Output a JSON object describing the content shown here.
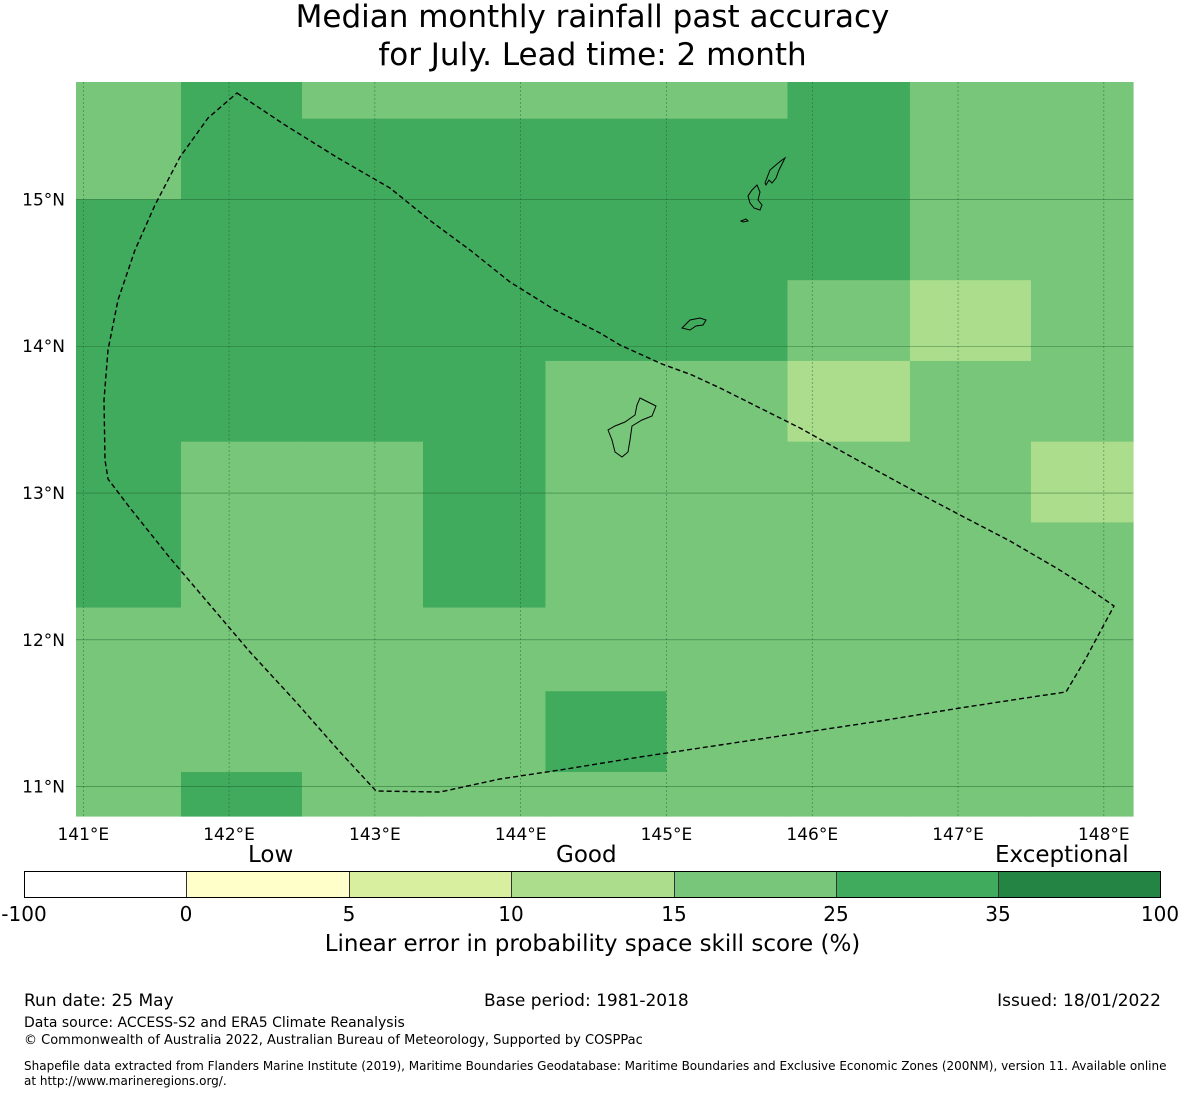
{
  "title": {
    "line1": "Median monthly rainfall past accuracy",
    "line2": "for July. Lead time: 2 month"
  },
  "map": {
    "lon_ticks": [
      "141°E",
      "142°E",
      "143°E",
      "144°E",
      "145°E",
      "146°E",
      "147°E",
      "148°E"
    ],
    "lat_ticks": [
      "15°N",
      "14°N",
      "13°N",
      "12°N",
      "11°N"
    ],
    "lon_range": [
      140.95,
      148.2
    ],
    "lat_range": [
      10.8,
      15.8
    ],
    "palette": {
      "bin_0_5": "#ffffc9",
      "bin_5_10": "#d8efa0",
      "bin_10_15": "#acdd8c",
      "bin_15_25": "#78c679",
      "bin_25_35": "#41ab5d",
      "bin_35_100": "#238443"
    },
    "grid_columns_lon_edges": [
      140.95,
      141.67,
      142.5,
      143.33,
      144.17,
      145.0,
      145.83,
      146.67,
      147.5,
      148.2
    ],
    "grid_rows_lat_edges": [
      15.8,
      15.55,
      15.0,
      14.45,
      13.9,
      13.35,
      12.8,
      12.22,
      11.65,
      11.1,
      10.8
    ],
    "cells": [
      [
        "bin_15_25",
        "bin_25_35",
        "bin_15_25",
        "bin_15_25",
        "bin_15_25",
        "bin_15_25",
        "bin_25_35",
        "bin_15_25",
        "bin_15_25"
      ],
      [
        "bin_15_25",
        "bin_25_35",
        "bin_25_35",
        "bin_25_35",
        "bin_25_35",
        "bin_25_35",
        "bin_25_35",
        "bin_15_25",
        "bin_15_25"
      ],
      [
        "bin_25_35",
        "bin_25_35",
        "bin_25_35",
        "bin_25_35",
        "bin_25_35",
        "bin_25_35",
        "bin_25_35",
        "bin_15_25",
        "bin_15_25"
      ],
      [
        "bin_25_35",
        "bin_25_35",
        "bin_25_35",
        "bin_25_35",
        "bin_25_35",
        "bin_25_35",
        "bin_15_25",
        "bin_10_15",
        "bin_15_25"
      ],
      [
        "bin_25_35",
        "bin_25_35",
        "bin_25_35",
        "bin_25_35",
        "bin_15_25",
        "bin_15_25",
        "bin_10_15",
        "bin_15_25",
        "bin_15_25"
      ],
      [
        "bin_25_35",
        "bin_15_25",
        "bin_15_25",
        "bin_25_35",
        "bin_15_25",
        "bin_15_25",
        "bin_15_25",
        "bin_15_25",
        "bin_10_15"
      ],
      [
        "bin_25_35",
        "bin_15_25",
        "bin_15_25",
        "bin_25_35",
        "bin_15_25",
        "bin_15_25",
        "bin_15_25",
        "bin_15_25",
        "bin_15_25"
      ],
      [
        "bin_15_25",
        "bin_15_25",
        "bin_15_25",
        "bin_15_25",
        "bin_15_25",
        "bin_15_25",
        "bin_15_25",
        "bin_15_25",
        "bin_15_25"
      ],
      [
        "bin_15_25",
        "bin_15_25",
        "bin_15_25",
        "bin_15_25",
        "bin_25_35",
        "bin_15_25",
        "bin_15_25",
        "bin_15_25",
        "bin_15_25"
      ],
      [
        "bin_15_25",
        "bin_25_35",
        "bin_15_25",
        "bin_15_25",
        "bin_15_25",
        "bin_15_25",
        "bin_15_25",
        "bin_15_25",
        "bin_15_25"
      ]
    ]
  },
  "colorbar": {
    "category_labels": [
      "Low",
      "Good",
      "Exceptional"
    ],
    "ticks": [
      "-100",
      "0",
      "5",
      "10",
      "15",
      "25",
      "35",
      "100"
    ],
    "colors": [
      "#ffffff",
      "#ffffc9",
      "#d8efa0",
      "#acdd8c",
      "#78c679",
      "#41ab5d",
      "#238443"
    ],
    "title": "Linear error in probability space skill score (%)"
  },
  "footer": {
    "run_date": "Run date: 25 May",
    "base_period": "Base period: 1981-2018",
    "issued": "Issued: 18/01/2022",
    "data_source": "Data source: ACCESS-S2 and ERA5 Climate Reanalysis",
    "copyright": "© Commonwealth of Australia 2022, Australian Bureau of Meteorology, Supported by COSPPac",
    "shapefile_line1": "Shapefile data extracted from Flanders Marine Institute (2019), Maritime Boundaries Geodatabase: Maritime Boundaries and Exclusive Economic Zones (200NM), version 11. Available online",
    "shapefile_line2": "at http://www.marineregions.org/."
  }
}
